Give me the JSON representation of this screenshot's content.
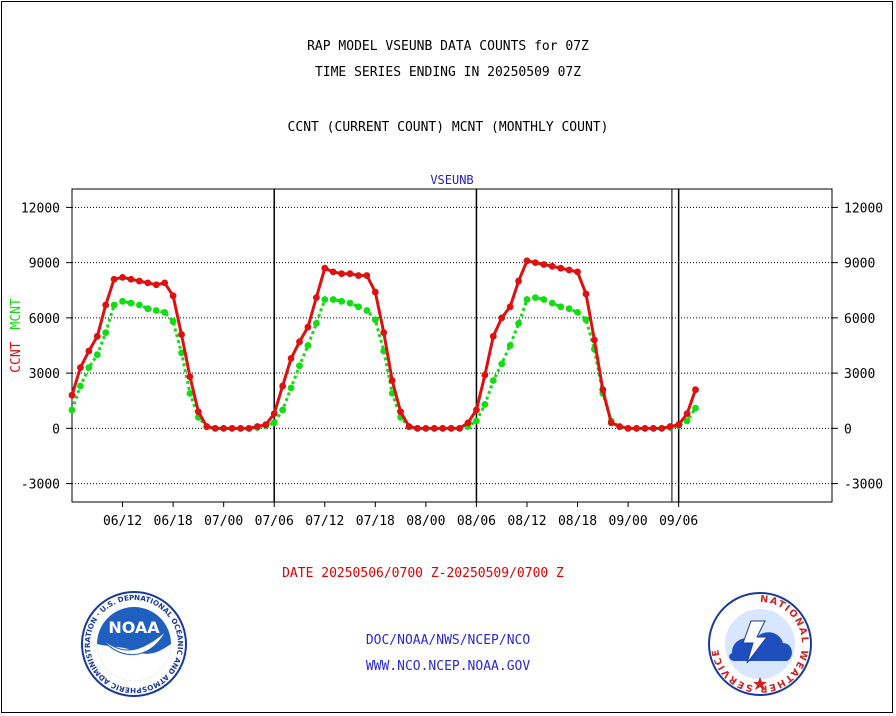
{
  "header": {
    "line1": "RAP MODEL VSEUNB DATA COUNTS for 07Z",
    "line2": "TIME SERIES ENDING IN 20250509 07Z",
    "line3": "CCNT (CURRENT COUNT) MCNT (MONTHLY COUNT)"
  },
  "date_range": "DATE 20250506/0700 Z-20250509/0700 Z",
  "footer": {
    "org": "DOC/NOAA/NWS/NCEP/NCO",
    "url": "WWW.NCO.NCEP.NOAA.GOV"
  },
  "logos": {
    "noaa_text": "NOAA",
    "noaa_ring": "NATIONAL OCEANIC AND ATMOSPHERIC ADMINISTRATION · U.S. DEPARTMENT OF COMMERCE ·",
    "nws_ring": "NATIONAL WEATHER SERVICE"
  },
  "colors": {
    "ccnt": "#dd1111",
    "mcnt": "#11dd11",
    "label_blue": "#2222bb",
    "axis": "#000000"
  },
  "chart_data": {
    "type": "line",
    "title": "VSEUNB",
    "ylabel_parts": [
      {
        "text": "CCNT",
        "color": "#dd1111"
      },
      {
        "text": "MCNT",
        "color": "#11dd11"
      }
    ],
    "ylim": [
      -4000,
      13000
    ],
    "yticks": [
      -3000,
      0,
      3000,
      6000,
      9000,
      12000
    ],
    "xlim": [
      0,
      90.2
    ],
    "xticks": [
      {
        "x": 6,
        "label": "06/12"
      },
      {
        "x": 12,
        "label": "06/18"
      },
      {
        "x": 18,
        "label": "07/00"
      },
      {
        "x": 24,
        "label": "07/06"
      },
      {
        "x": 30,
        "label": "07/12"
      },
      {
        "x": 36,
        "label": "07/18"
      },
      {
        "x": 42,
        "label": "08/00"
      },
      {
        "x": 48,
        "label": "08/06"
      },
      {
        "x": 54,
        "label": "08/12"
      },
      {
        "x": 60,
        "label": "08/18"
      },
      {
        "x": 66,
        "label": "09/00"
      },
      {
        "x": 72,
        "label": "09/06"
      }
    ],
    "day_lines": [
      24,
      48,
      72
    ],
    "extra_line": 71.2,
    "grid": "horizontal-dotted",
    "series": [
      {
        "key": "ccnt",
        "color": "#dd1111",
        "points": [
          [
            0,
            1800
          ],
          [
            1,
            3300
          ],
          [
            2,
            4200
          ],
          [
            3,
            5000
          ],
          [
            4,
            6700
          ],
          [
            5,
            8100
          ],
          [
            6,
            8200
          ],
          [
            7,
            8100
          ],
          [
            8,
            8000
          ],
          [
            9,
            7900
          ],
          [
            10,
            7800
          ],
          [
            11,
            7900
          ],
          [
            12,
            7200
          ],
          [
            13,
            5100
          ],
          [
            14,
            2800
          ],
          [
            15,
            900
          ],
          [
            16,
            100
          ],
          [
            17,
            0
          ],
          [
            18,
            0
          ],
          [
            19,
            0
          ],
          [
            20,
            0
          ],
          [
            21,
            0
          ],
          [
            22,
            100
          ],
          [
            23,
            200
          ],
          [
            24,
            800
          ],
          [
            25,
            2300
          ],
          [
            26,
            3800
          ],
          [
            27,
            4700
          ],
          [
            28,
            5500
          ],
          [
            29,
            7100
          ],
          [
            30,
            8700
          ],
          [
            31,
            8500
          ],
          [
            32,
            8400
          ],
          [
            33,
            8400
          ],
          [
            34,
            8300
          ],
          [
            35,
            8300
          ],
          [
            36,
            7400
          ],
          [
            37,
            5200
          ],
          [
            38,
            2600
          ],
          [
            39,
            900
          ],
          [
            40,
            100
          ],
          [
            41,
            0
          ],
          [
            42,
            0
          ],
          [
            43,
            0
          ],
          [
            44,
            0
          ],
          [
            45,
            0
          ],
          [
            46,
            0
          ],
          [
            47,
            300
          ],
          [
            48,
            1000
          ],
          [
            49,
            2900
          ],
          [
            50,
            5000
          ],
          [
            51,
            6000
          ],
          [
            52,
            6600
          ],
          [
            53,
            8000
          ],
          [
            54,
            9100
          ],
          [
            55,
            9000
          ],
          [
            56,
            8900
          ],
          [
            57,
            8800
          ],
          [
            58,
            8700
          ],
          [
            59,
            8600
          ],
          [
            60,
            8500
          ],
          [
            61,
            7300
          ],
          [
            62,
            4800
          ],
          [
            63,
            2100
          ],
          [
            64,
            300
          ],
          [
            65,
            100
          ],
          [
            66,
            0
          ],
          [
            67,
            0
          ],
          [
            68,
            0
          ],
          [
            69,
            0
          ],
          [
            70,
            0
          ],
          [
            71,
            100
          ],
          [
            72,
            200
          ],
          [
            73,
            800
          ],
          [
            74,
            2100
          ]
        ]
      },
      {
        "key": "mcnt",
        "color": "#11dd11",
        "points": [
          [
            0,
            1000
          ],
          [
            1,
            2300
          ],
          [
            2,
            3300
          ],
          [
            3,
            4000
          ],
          [
            4,
            5200
          ],
          [
            5,
            6700
          ],
          [
            6,
            6900
          ],
          [
            7,
            6800
          ],
          [
            8,
            6700
          ],
          [
            9,
            6500
          ],
          [
            10,
            6400
          ],
          [
            11,
            6300
          ],
          [
            12,
            5800
          ],
          [
            13,
            4100
          ],
          [
            14,
            1900
          ],
          [
            15,
            600
          ],
          [
            16,
            80
          ],
          [
            17,
            0
          ],
          [
            18,
            0
          ],
          [
            19,
            0
          ],
          [
            20,
            0
          ],
          [
            21,
            0
          ],
          [
            22,
            50
          ],
          [
            23,
            150
          ],
          [
            24,
            300
          ],
          [
            25,
            1000
          ],
          [
            26,
            2200
          ],
          [
            27,
            3400
          ],
          [
            28,
            4500
          ],
          [
            29,
            5700
          ],
          [
            30,
            7000
          ],
          [
            31,
            7000
          ],
          [
            32,
            6900
          ],
          [
            33,
            6800
          ],
          [
            34,
            6600
          ],
          [
            35,
            6400
          ],
          [
            36,
            5900
          ],
          [
            37,
            4200
          ],
          [
            38,
            1900
          ],
          [
            39,
            600
          ],
          [
            40,
            80
          ],
          [
            41,
            0
          ],
          [
            42,
            0
          ],
          [
            43,
            0
          ],
          [
            44,
            0
          ],
          [
            45,
            0
          ],
          [
            46,
            0
          ],
          [
            47,
            100
          ],
          [
            48,
            400
          ],
          [
            49,
            1300
          ],
          [
            50,
            2600
          ],
          [
            51,
            3500
          ],
          [
            52,
            4500
          ],
          [
            53,
            5700
          ],
          [
            54,
            7000
          ],
          [
            55,
            7100
          ],
          [
            56,
            7000
          ],
          [
            57,
            6800
          ],
          [
            58,
            6600
          ],
          [
            59,
            6500
          ],
          [
            60,
            6300
          ],
          [
            61,
            5900
          ],
          [
            62,
            4300
          ],
          [
            63,
            1900
          ],
          [
            64,
            400
          ],
          [
            65,
            80
          ],
          [
            66,
            0
          ],
          [
            67,
            0
          ],
          [
            68,
            0
          ],
          [
            69,
            0
          ],
          [
            70,
            0
          ],
          [
            71,
            50
          ],
          [
            72,
            150
          ],
          [
            73,
            400
          ],
          [
            74,
            1100
          ]
        ]
      }
    ]
  }
}
